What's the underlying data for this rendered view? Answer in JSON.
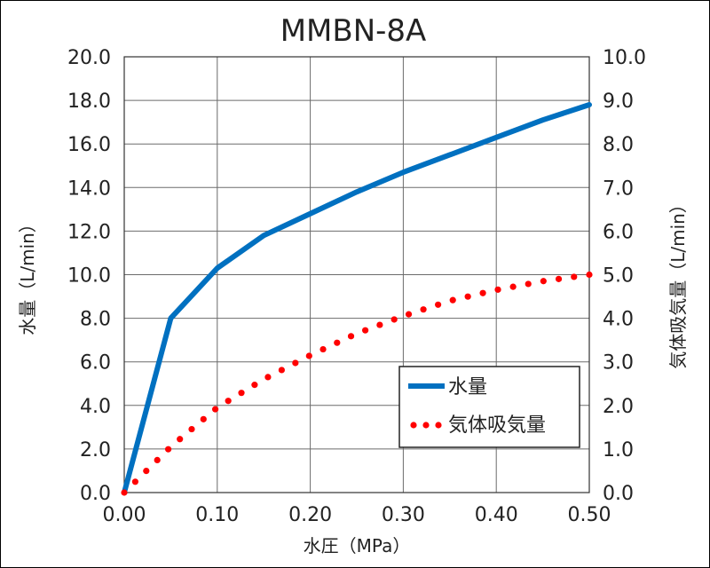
{
  "chart_data": {
    "type": "line",
    "title": "MMBN-8A",
    "xlabel": "水圧（MPa）",
    "ylabel": "水量（L/min）",
    "y2label": "気体吸気量（L/min）",
    "xlim": [
      0,
      0.5
    ],
    "ylim": [
      0,
      20
    ],
    "y2lim": [
      0,
      10
    ],
    "grid": true,
    "legend_position": "bottom-right",
    "x_ticks": [
      "0.00",
      "0.10",
      "0.20",
      "0.30",
      "0.40",
      "0.50"
    ],
    "y_ticks": [
      "0.0",
      "2.0",
      "4.0",
      "6.0",
      "8.0",
      "10.0",
      "12.0",
      "14.0",
      "16.0",
      "18.0",
      "20.0"
    ],
    "y2_ticks": [
      "0.0",
      "1.0",
      "2.0",
      "3.0",
      "4.0",
      "5.0",
      "6.0",
      "7.0",
      "8.0",
      "9.0",
      "10.0"
    ],
    "series": [
      {
        "name": "水量",
        "axis": "left",
        "style": "solid",
        "color": "#0070C0",
        "x": [
          0,
          0.05,
          0.1,
          0.15,
          0.2,
          0.25,
          0.3,
          0.35,
          0.4,
          0.45,
          0.5
        ],
        "y": [
          0,
          8.0,
          10.3,
          11.8,
          12.8,
          13.8,
          14.7,
          15.5,
          16.3,
          17.1,
          17.8
        ]
      },
      {
        "name": "気体吸気量",
        "axis": "right",
        "style": "dotted",
        "color": "#FF0000",
        "x": [
          0,
          0.05,
          0.1,
          0.15,
          0.2,
          0.25,
          0.3,
          0.35,
          0.4,
          0.45,
          0.5
        ],
        "y": [
          0,
          1.05,
          1.95,
          2.6,
          3.15,
          3.65,
          4.05,
          4.4,
          4.65,
          4.85,
          5.0
        ]
      }
    ]
  }
}
